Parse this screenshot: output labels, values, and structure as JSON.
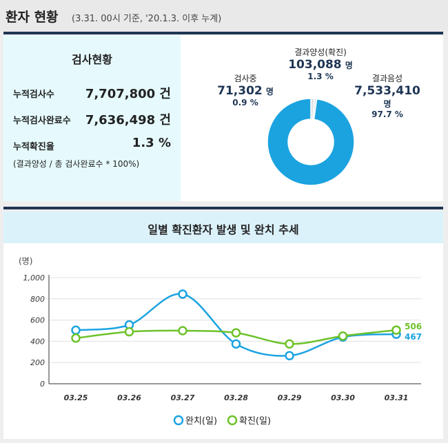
{
  "header": {
    "title": "환자 현황",
    "subtitle": "(3.31. 00시 기준, '20.1.3. 이후 누계)"
  },
  "stats": {
    "title": "검사현황",
    "rows": [
      {
        "label": "누적검사수",
        "value": "7,707,800 건"
      },
      {
        "label": "누적검사완료수",
        "value": "7,636,498 건"
      },
      {
        "label": "누적확진율",
        "value": "1.3 %"
      }
    ],
    "note": "(결과양성 / 총 검사완료수 * 100%)"
  },
  "donut": {
    "segments": [
      {
        "name": "결과양성(확진)",
        "value": "103,088",
        "unit": "명",
        "percent": "1.3 %",
        "share": 1.3,
        "color": "#e0e0e0"
      },
      {
        "name": "검사중",
        "value": "71,302",
        "unit": "명",
        "percent": "0.9 %",
        "share": 0.9,
        "color": "#cfe9f5"
      },
      {
        "name": "결과음성",
        "value": "7,533,410",
        "unit": "명",
        "percent": "97.7 %",
        "share": 97.7,
        "color": "#1ba3e0"
      }
    ]
  },
  "chart_title": "일별 확진환자 발생 및 완치 추세",
  "chart_data": {
    "type": "line",
    "ylabel": "(명)",
    "ylim": [
      0,
      1000
    ],
    "yticks": [
      "0",
      "200",
      "400",
      "600",
      "800",
      "1,000"
    ],
    "categories": [
      "03.25",
      "03.26",
      "03.27",
      "03.28",
      "03.29",
      "03.30",
      "03.31"
    ],
    "series": [
      {
        "name": "완치(일)",
        "color": "#1ba3e0",
        "values": [
          505,
          555,
          845,
          375,
          265,
          440,
          467
        ],
        "last_label": "467"
      },
      {
        "name": "확진(일)",
        "color": "#6dc22a",
        "values": [
          430,
          490,
          500,
          480,
          375,
          450,
          506
        ],
        "last_label": "506"
      }
    ],
    "grid": true,
    "legend": "bottom"
  }
}
